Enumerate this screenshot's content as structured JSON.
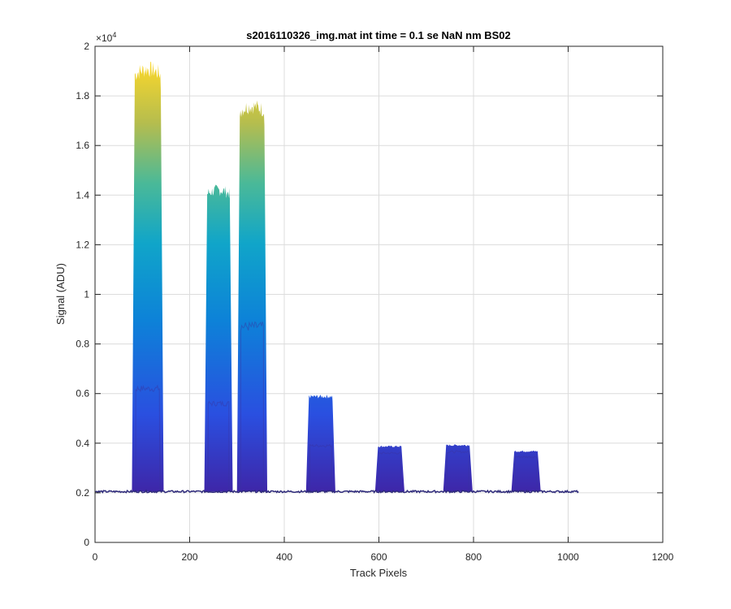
{
  "chart_data": {
    "type": "area",
    "title": "s2016110326_img.mat int time = 0.1 se  NaN nm BS02",
    "xlabel": "Track Pixels",
    "ylabel": "Signal (ADU)",
    "xlim": [
      0,
      1200
    ],
    "ylim": [
      0,
      20000
    ],
    "y_exponent_label": "×10",
    "y_exponent_power": "4",
    "x_ticks": [
      0,
      200,
      400,
      600,
      800,
      1000,
      1200
    ],
    "x_tick_labels": [
      "0",
      "200",
      "400",
      "600",
      "800",
      "1000",
      "1200"
    ],
    "y_ticks": [
      0,
      2000,
      4000,
      6000,
      8000,
      10000,
      12000,
      14000,
      16000,
      18000,
      20000
    ],
    "y_tick_labels": [
      "0",
      "0.2",
      "0.4",
      "0.6",
      "0.8",
      "1",
      "1.2",
      "1.4",
      "1.6",
      "1.8",
      "2"
    ],
    "grid": true,
    "colormap": "parula",
    "baseline": 2050,
    "x_range_data": [
      0,
      1023
    ],
    "peaks": [
      {
        "start": 80,
        "end": 143,
        "peak": 19200,
        "inner": 6200
      },
      {
        "start": 233,
        "end": 289,
        "peak": 14300,
        "inner": 5600
      },
      {
        "start": 302,
        "end": 362,
        "peak": 17700,
        "inner": 8700
      },
      {
        "start": 448,
        "end": 506,
        "peak": 6000,
        "inner": 3900
      },
      {
        "start": 594,
        "end": 652,
        "peak": 3950,
        "inner": 3600
      },
      {
        "start": 738,
        "end": 796,
        "peak": 4000,
        "inner": 3650
      },
      {
        "start": 882,
        "end": 940,
        "peak": 3750,
        "inner": 3450
      }
    ]
  },
  "colors": {
    "axis": "#262626",
    "grid": "#dcdcdc",
    "baseline_line": "#2e2a7a",
    "parula_bottom": "#3e26a8",
    "parula_blue": "#0d6bdd",
    "parula_cyan": "#10a5c9",
    "parula_green": "#5bc27d",
    "parula_yellow": "#fad72b"
  }
}
